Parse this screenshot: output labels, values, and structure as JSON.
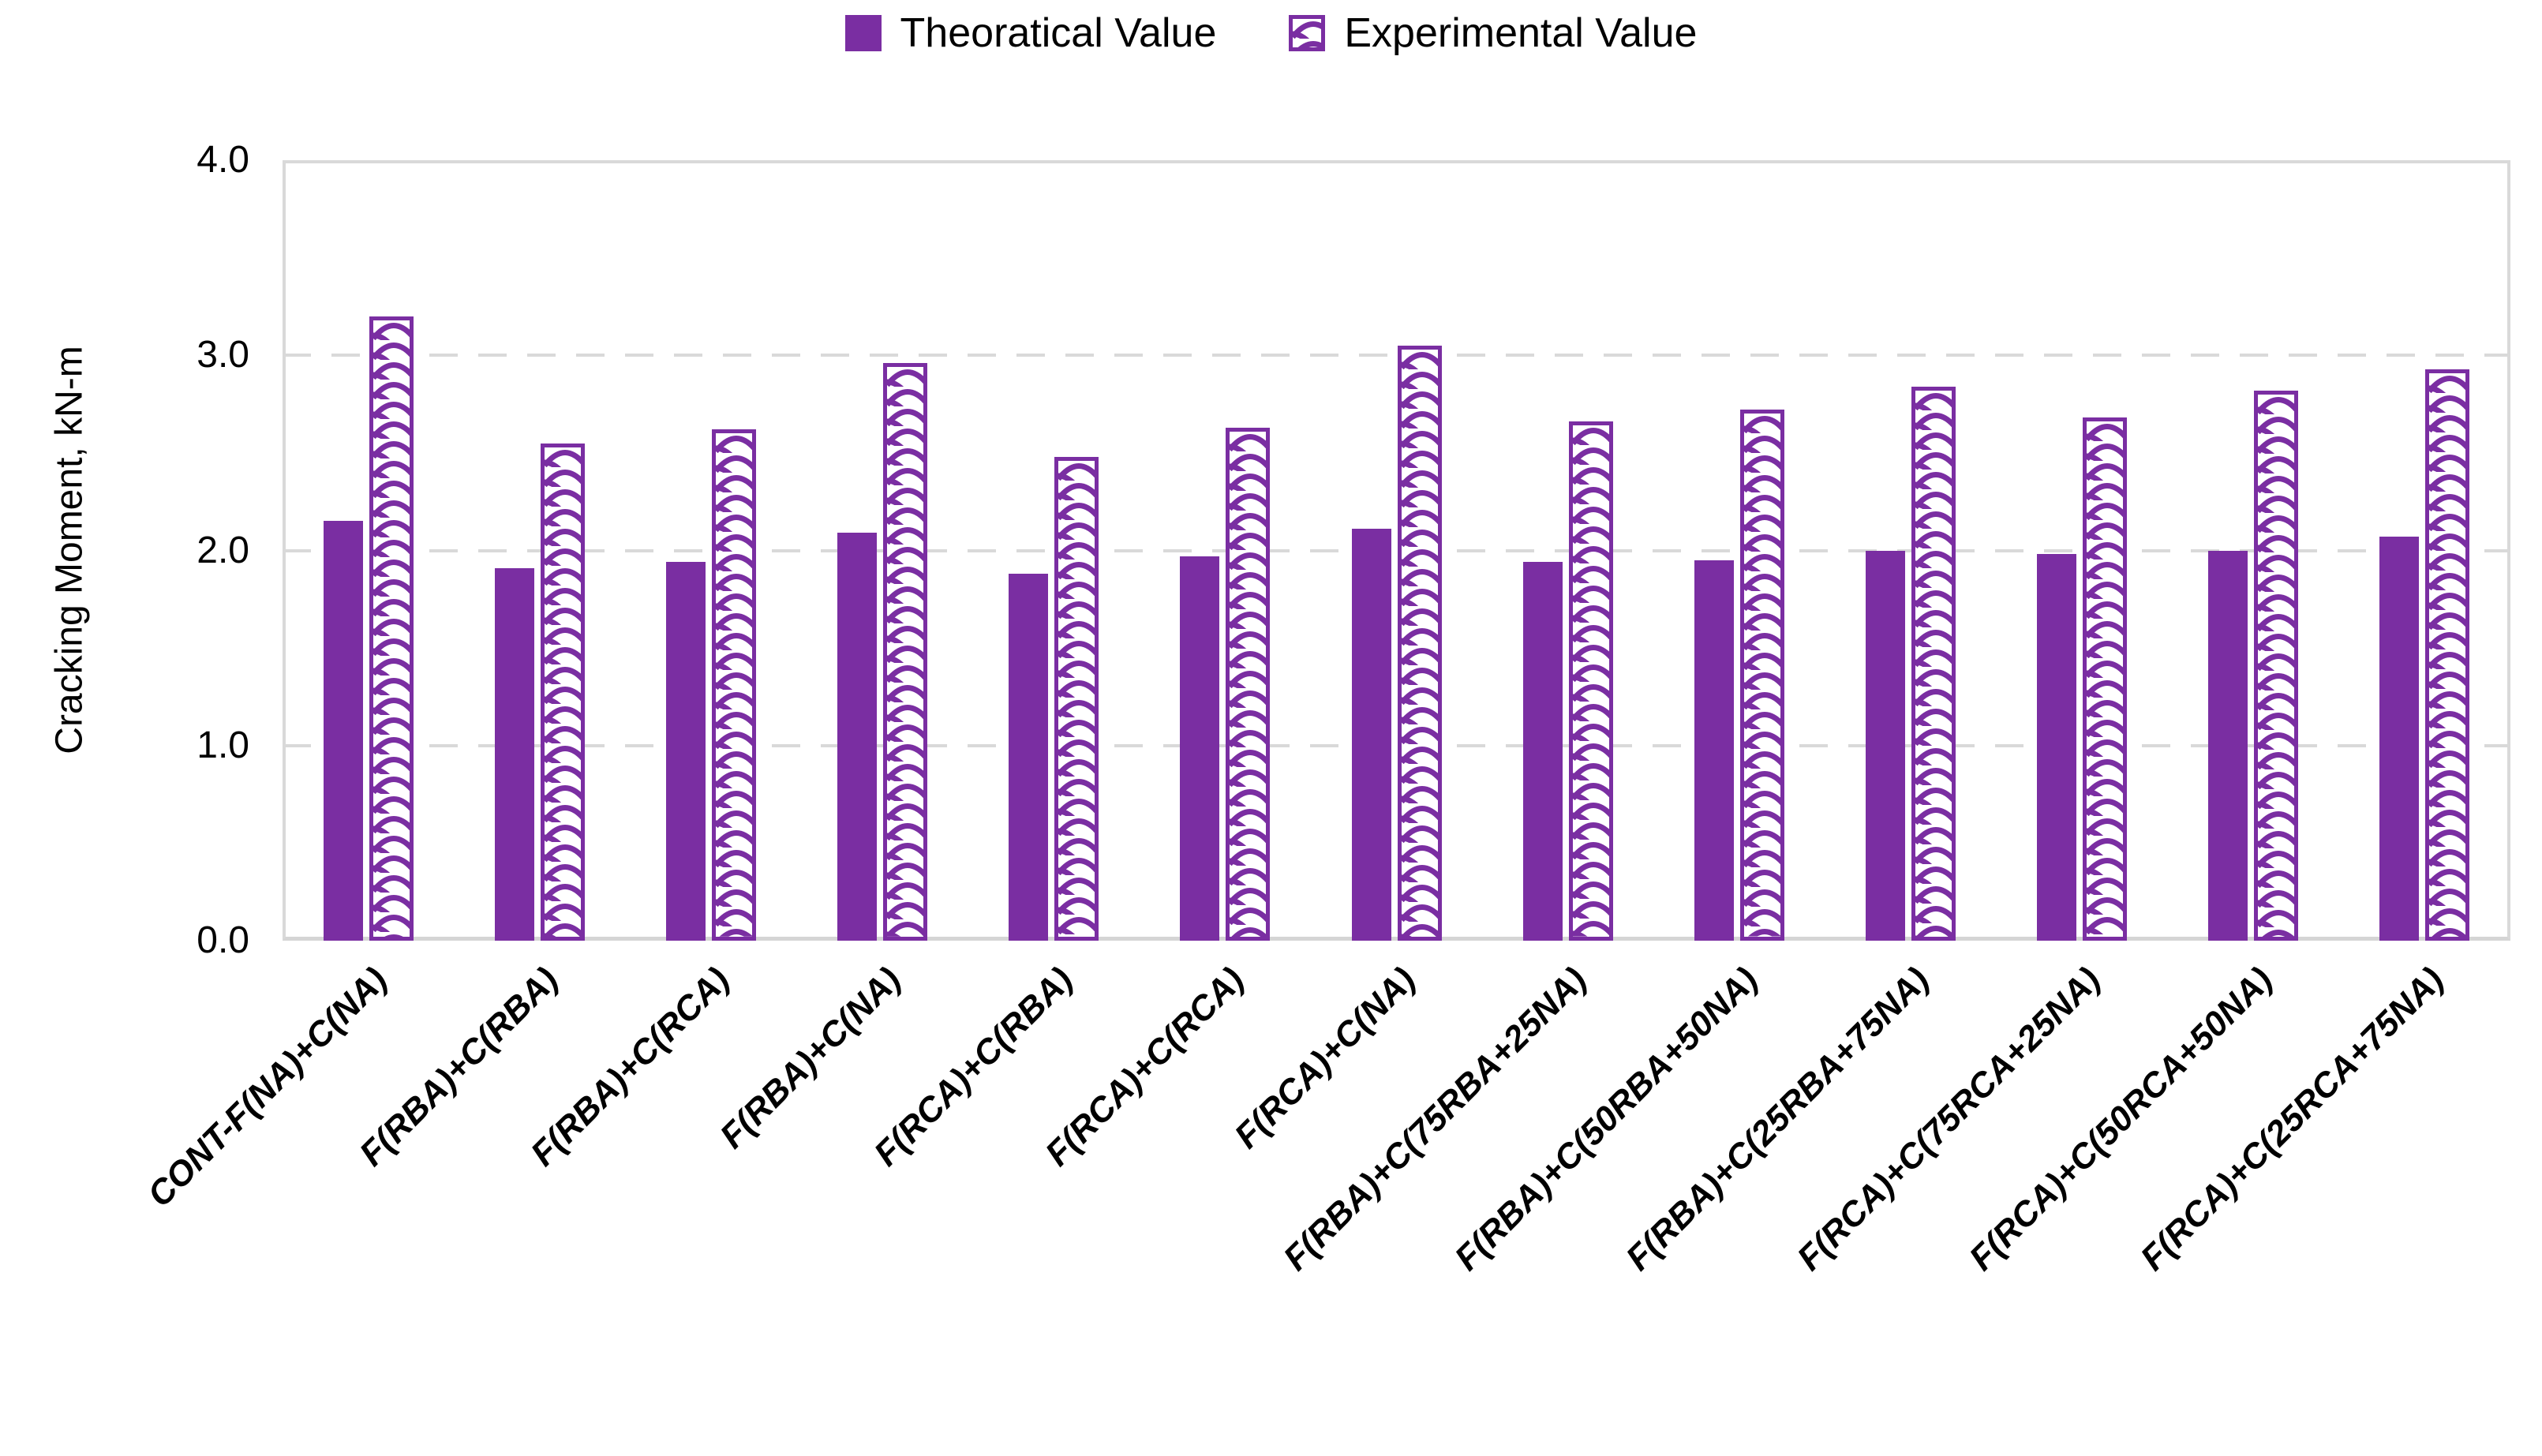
{
  "legend": {
    "items": [
      {
        "label": "Theoratical Value",
        "swatch": "solid-square-icon"
      },
      {
        "label": "Experimental Value",
        "swatch": "wave-hatched-square-icon"
      }
    ],
    "position": "top-center"
  },
  "colors": {
    "bar_purple": "#7A2EA2",
    "gridline_gray": "#D9D9D9",
    "axis_gray": "#D5D5D5",
    "text_black": "#000000",
    "background": "#FFFFFF"
  },
  "chart_data": {
    "type": "bar",
    "title": "",
    "xlabel": "",
    "ylabel": "Cracking Moment, kN-m",
    "ylim": [
      0,
      4
    ],
    "y_ticks": [
      "0.0",
      "1.0",
      "2.0",
      "3.0",
      "4.0"
    ],
    "grid": "horizontal dashed at 1.0, 2.0, 3.0",
    "legend_position": "top-center",
    "bar_style_series1": "solid fill",
    "bar_style_series2": "wave pattern hatch with solid outline",
    "categories": [
      "CONT-F(NA)+C(NA)",
      "F(RBA)+C(RBA)",
      "F(RBA)+C(RCA)",
      "F(RBA)+C(NA)",
      "F(RCA)+C(RBA)",
      "F(RCA)+C(RCA)",
      "F(RCA)+C(NA)",
      "F(RBA)+C(75RBA+25NA)",
      "F(RBA)+C(50RBA+50NA)",
      "F(RBA)+C(25RBA+75NA)",
      "F(RCA)+C(75RCA+25NA)",
      "F(RCA)+C(50RCA+50NA)",
      "F(RCA)+C(25RCA+75NA)"
    ],
    "series": [
      {
        "name": "Theoratical Value",
        "values": [
          2.15,
          1.91,
          1.94,
          2.09,
          1.88,
          1.97,
          2.11,
          1.94,
          1.95,
          2.0,
          1.98,
          2.0,
          2.07
        ]
      },
      {
        "name": "Experimental Value",
        "values": [
          3.2,
          2.55,
          2.62,
          2.96,
          2.48,
          2.63,
          3.05,
          2.66,
          2.72,
          2.84,
          2.68,
          2.82,
          2.93
        ]
      }
    ]
  }
}
